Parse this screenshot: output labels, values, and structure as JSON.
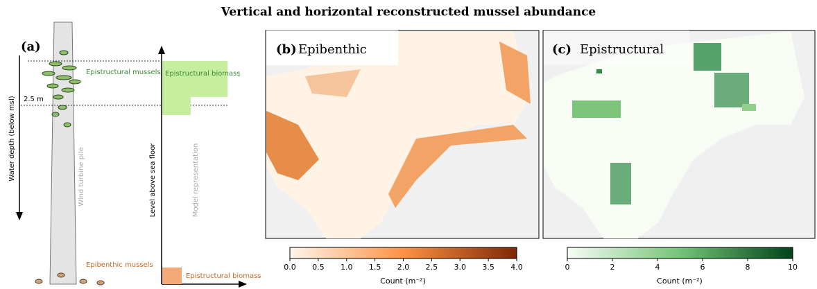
{
  "title": "Vertical and horizontal reconstructed mussel abundance",
  "panel_a": {
    "label": "(a)",
    "epistructural_mussels": "Epistructural mussels",
    "depth_mark": "2.5 m",
    "depth_axis": "Water depth (below msl)",
    "pile": "Wind turbine pile",
    "epibenthic_mussels": "Epibenthic mussels",
    "level_axis": "Level above sea floor",
    "model": "Model representation",
    "epistructural_biomass": "Epistructural biomass",
    "epibenthic_biomass": "Epistructural biomass"
  },
  "panel_b": {
    "label": "(b)",
    "title": "Epibenthic",
    "colorbar": {
      "label": "Count (m⁻²)",
      "lim": [
        0,
        4
      ],
      "ticks": [
        {
          "value": 0,
          "label": "0.0"
        },
        0.5,
        {
          "value": 1,
          "label": "1.0"
        },
        1.5,
        {
          "value": 2,
          "label": "2.0"
        },
        2.5,
        {
          "value": 3,
          "label": "3.0"
        },
        3.5,
        {
          "value": 4,
          "label": "4.0"
        }
      ]
    }
  },
  "panel_c": {
    "label": "(c)",
    "title": "Epistructural",
    "colorbar": {
      "label": "Count (m⁻²)",
      "lim": [
        0,
        10
      ],
      "ticks": [
        0,
        2,
        4,
        6,
        8,
        10
      ]
    }
  }
}
